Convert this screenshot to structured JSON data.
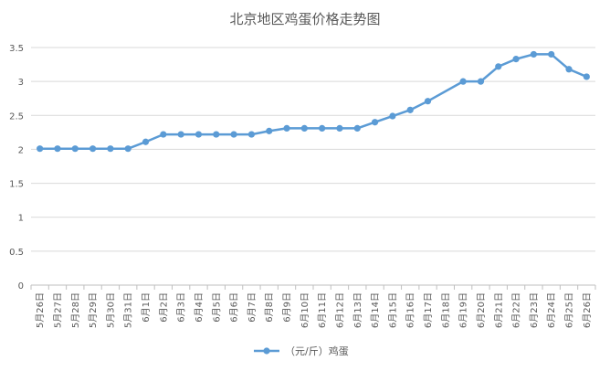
{
  "chart_data": {
    "type": "line",
    "title": "北京地区鸡蛋价格走势图",
    "xlabel": "",
    "ylabel": "",
    "ylim": [
      0,
      3.5
    ],
    "yticks": [
      0,
      0.5,
      1,
      1.5,
      2,
      2.5,
      3,
      3.5
    ],
    "ytick_labels": [
      "0",
      "0.5",
      "1",
      "1.5",
      "2",
      "2.5",
      "3",
      "3.5"
    ],
    "grid": true,
    "legend_position": "bottom",
    "colors": {
      "series": "#5B9BD5",
      "grid": "#d9d9d9",
      "axis": "#bfbfbf",
      "text": "#595959"
    },
    "categories": [
      "5月26日",
      "5月27日",
      "5月28日",
      "5月29日",
      "5月30日",
      "5月31日",
      "6月1日",
      "6月2日",
      "6月3日",
      "6月4日",
      "6月5日",
      "6月6日",
      "6月7日",
      "6月8日",
      "6月9日",
      "6月10日",
      "6月11日",
      "6月12日",
      "6月13日",
      "6月14日",
      "6月15日",
      "6月16日",
      "6月17日",
      "6月18日",
      "6月19日",
      "6月20日",
      "6月21日",
      "6月22日",
      "6月23日",
      "6月24日",
      "6月25日",
      "6月26日"
    ],
    "series": [
      {
        "name": "（元/斤）鸡蛋",
        "values": [
          2.01,
          2.01,
          2.01,
          2.01,
          2.01,
          2.01,
          2.11,
          2.22,
          2.22,
          2.22,
          2.22,
          2.22,
          2.22,
          2.27,
          2.31,
          2.31,
          2.31,
          2.31,
          2.31,
          2.4,
          2.49,
          2.58,
          2.71,
          null,
          3.0,
          3.0,
          3.22,
          3.33,
          3.4,
          3.4,
          3.18,
          3.07
        ]
      }
    ]
  }
}
